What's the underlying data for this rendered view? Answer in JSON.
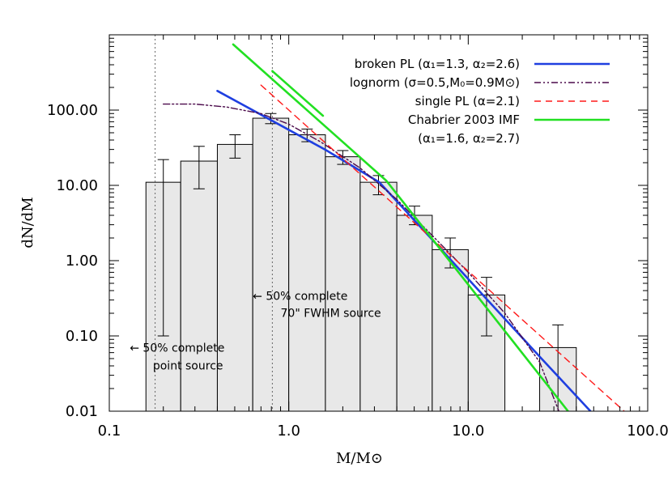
{
  "chart_data": {
    "type": "histogram",
    "xlabel": "M/M⊙",
    "ylabel": "dN/dM",
    "xscale": "log",
    "yscale": "log",
    "xlim": [
      0.1,
      100.0
    ],
    "ylim": [
      0.01,
      1000
    ],
    "x_ticks": [
      {
        "value": 0.1,
        "label": "0.1"
      },
      {
        "value": 1.0,
        "label": "1.0"
      },
      {
        "value": 10.0,
        "label": "10.0"
      },
      {
        "value": 100.0,
        "label": "100.0"
      }
    ],
    "y_ticks": [
      {
        "value": 0.01,
        "label": "0.01"
      },
      {
        "value": 0.1,
        "label": "0.10"
      },
      {
        "value": 1.0,
        "label": "1.00"
      },
      {
        "value": 10.0,
        "label": "10.00"
      },
      {
        "value": 100.0,
        "label": "100.00"
      }
    ],
    "histogram": {
      "fill_color": "#e8e8e8",
      "bins": [
        {
          "x0": 0.16,
          "x1": 0.25,
          "y": 11.0,
          "err_lo": 0.1,
          "err_hi": 22.0
        },
        {
          "x0": 0.25,
          "x1": 0.4,
          "y": 21.0,
          "err_lo": 9.0,
          "err_hi": 33.0
        },
        {
          "x0": 0.4,
          "x1": 0.63,
          "y": 35.0,
          "err_lo": 23.0,
          "err_hi": 47.0
        },
        {
          "x0": 0.63,
          "x1": 1.0,
          "y": 78.0,
          "err_lo": 66.0,
          "err_hi": 90.0
        },
        {
          "x0": 1.0,
          "x1": 1.6,
          "y": 47.0,
          "err_lo": 38.0,
          "err_hi": 56.0
        },
        {
          "x0": 1.6,
          "x1": 2.5,
          "y": 24.0,
          "err_lo": 19.0,
          "err_hi": 29.0
        },
        {
          "x0": 2.5,
          "x1": 4.0,
          "y": 11.0,
          "err_lo": 7.5,
          "err_hi": 13.5
        },
        {
          "x0": 4.0,
          "x1": 6.3,
          "y": 4.0,
          "err_lo": 3.0,
          "err_hi": 5.3
        },
        {
          "x0": 6.3,
          "x1": 10.0,
          "y": 1.4,
          "err_lo": 0.8,
          "err_hi": 2.0
        },
        {
          "x0": 10.0,
          "x1": 16.0,
          "y": 0.35,
          "err_lo": 0.1,
          "err_hi": 0.6
        },
        {
          "x0": 16.0,
          "x1": 25.0,
          "y": 0.0
        },
        {
          "x0": 25.0,
          "x1": 40.0,
          "y": 0.07,
          "err_lo": 0.01,
          "err_hi": 0.14
        }
      ]
    },
    "series": [
      {
        "name": "broken PL (α₁=1.3, α₂=2.6)",
        "color": "#1f3fe0",
        "style": "solid",
        "x": [
          0.4,
          0.8,
          1.6,
          3.2,
          6.4,
          12.8,
          25.6,
          48.0
        ],
        "y": [
          180,
          73,
          29.7,
          11.0,
          1.82,
          0.3,
          0.05,
          0.01
        ]
      },
      {
        "name": "lognorm (σ=0.5,M₀=0.9M⊙)",
        "color": "#4b0a4b",
        "style": "dash-dot-dot",
        "x": [
          0.2,
          0.3,
          0.45,
          0.7,
          1.0,
          1.5,
          2.5,
          4.0,
          6.5,
          10.0,
          16.0,
          25.0,
          32.0
        ],
        "y": [
          120,
          120,
          110,
          90,
          65,
          38,
          17,
          6.5,
          2.0,
          0.7,
          0.2,
          0.045,
          0.01
        ]
      },
      {
        "name": "single PL (α=2.1)",
        "color": "#ff1a1a",
        "style": "dashed",
        "x": [
          0.7,
          74.0
        ],
        "y": [
          215,
          0.01
        ]
      },
      {
        "name": "Chabrier 2003 IMF",
        "color": "#22e022",
        "style": "solid",
        "x": [
          0.49,
          3.5,
          36.0
        ],
        "y": [
          745,
          11.5,
          0.01
        ]
      },
      {
        "name": "",
        "color": "#22e022",
        "style": "solid",
        "x": [
          0.81,
          1.55
        ],
        "y": [
          330,
          84
        ]
      }
    ],
    "legend": {
      "placement": "top-right",
      "entries": [
        {
          "text": "broken PL (α₁=1.3, α₂=2.6)",
          "color": "#1f3fe0",
          "style": "solid"
        },
        {
          "text": "lognorm (σ=0.5,M₀=0.9M⊙)",
          "color": "#4b0a4b",
          "style": "dash-dot-dot"
        },
        {
          "text": "single PL (α=2.1)",
          "color": "#ff1a1a",
          "style": "dashed"
        },
        {
          "text": "Chabrier 2003 IMF",
          "color": "#22e022",
          "style": "solid"
        }
      ],
      "extra_line": "(α₁=1.6, α₂=2.7)"
    },
    "vlines": [
      {
        "x": 0.18,
        "style": "dotted"
      },
      {
        "x": 0.81,
        "style": "dotted"
      }
    ],
    "annotations": [
      {
        "text": "← 50% complete",
        "x": 0.63,
        "y": 0.3
      },
      {
        "text": "70\" FWHM source",
        "x": 0.9,
        "y": 0.18
      },
      {
        "text": "← 50% complete",
        "x": 0.13,
        "y": 0.062
      },
      {
        "text": "point source",
        "x": 0.175,
        "y": 0.036
      }
    ]
  }
}
